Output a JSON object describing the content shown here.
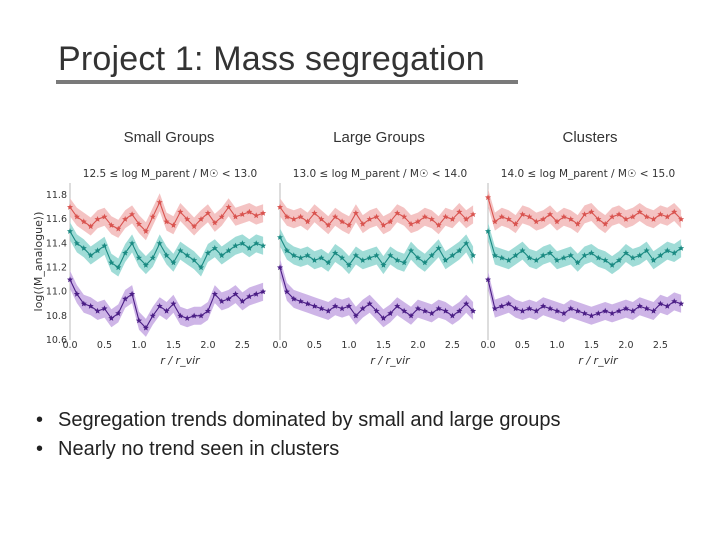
{
  "slide": {
    "title": "Project 1: Mass segregation",
    "bullets": [
      "Segregation trends dominated by small and large groups",
      "Nearly no trend seen in clusters"
    ]
  },
  "colors": {
    "top": "#d9534f",
    "middle": "#1a8a82",
    "bottom": "#4b1e86",
    "top_band": "#f2b8b8",
    "middle_band": "#8fd6d0",
    "bottom_band": "#c5a8e3"
  },
  "chart_data": [
    {
      "type": "line",
      "group": "Small Groups",
      "title": "12.5 ≤ log M_parent / M☉ < 13.0",
      "xlabel": "r / r_vir",
      "ylabel": "log(⟨M_analogue⟩)",
      "xlim": [
        0.0,
        2.9
      ],
      "ylim": [
        10.6,
        11.9
      ],
      "xticks": [
        "0.0",
        "0.5",
        "1.0",
        "1.5",
        "2.0",
        "2.5"
      ],
      "yticks": [
        "10.6",
        "10.8",
        "11.0",
        "11.2",
        "11.4",
        "11.6",
        "11.8"
      ],
      "grid": false,
      "x": [
        0.0,
        0.1,
        0.2,
        0.3,
        0.4,
        0.5,
        0.6,
        0.7,
        0.8,
        0.9,
        1.0,
        1.1,
        1.2,
        1.3,
        1.4,
        1.5,
        1.6,
        1.7,
        1.8,
        1.9,
        2.0,
        2.1,
        2.2,
        2.3,
        2.4,
        2.5,
        2.6,
        2.7,
        2.8
      ],
      "series": [
        {
          "values": [
            11.7,
            11.62,
            11.58,
            11.54,
            11.6,
            11.62,
            11.55,
            11.52,
            11.6,
            11.64,
            11.56,
            11.5,
            11.62,
            11.74,
            11.58,
            11.55,
            11.66,
            11.6,
            11.54,
            11.6,
            11.65,
            11.57,
            11.62,
            11.7,
            11.62,
            11.64,
            11.66,
            11.63,
            11.65
          ]
        },
        {
          "values": [
            11.5,
            11.4,
            11.36,
            11.3,
            11.34,
            11.38,
            11.24,
            11.2,
            11.32,
            11.4,
            11.28,
            11.22,
            11.28,
            11.4,
            11.3,
            11.24,
            11.34,
            11.3,
            11.26,
            11.2,
            11.32,
            11.36,
            11.3,
            11.34,
            11.38,
            11.4,
            11.36,
            11.4,
            11.38
          ]
        },
        {
          "values": [
            11.1,
            10.98,
            10.9,
            10.88,
            10.84,
            10.86,
            10.78,
            10.82,
            10.94,
            10.98,
            10.76,
            10.7,
            10.8,
            10.88,
            10.84,
            10.9,
            10.8,
            10.78,
            10.8,
            10.8,
            10.84,
            10.98,
            10.92,
            10.94,
            10.98,
            10.92,
            10.96,
            10.98,
            11.0
          ]
        }
      ]
    },
    {
      "type": "line",
      "group": "Large Groups",
      "title": "13.0 ≤ log M_parent / M☉ < 14.0",
      "xlabel": "r / r_vir",
      "ylabel": "",
      "xlim": [
        0.0,
        2.9
      ],
      "ylim": [
        10.6,
        11.9
      ],
      "xticks": [
        "0.0",
        "0.5",
        "1.0",
        "1.5",
        "2.0",
        "2.5"
      ],
      "yticks": [],
      "grid": false,
      "x": [
        0.0,
        0.1,
        0.2,
        0.3,
        0.4,
        0.5,
        0.6,
        0.7,
        0.8,
        0.9,
        1.0,
        1.1,
        1.2,
        1.3,
        1.4,
        1.5,
        1.6,
        1.7,
        1.8,
        1.9,
        2.0,
        2.1,
        2.2,
        2.3,
        2.4,
        2.5,
        2.6,
        2.7,
        2.8
      ],
      "series": [
        {
          "values": [
            11.7,
            11.62,
            11.6,
            11.62,
            11.58,
            11.65,
            11.6,
            11.55,
            11.62,
            11.58,
            11.55,
            11.65,
            11.56,
            11.6,
            11.62,
            11.55,
            11.58,
            11.65,
            11.62,
            11.56,
            11.58,
            11.62,
            11.6,
            11.55,
            11.62,
            11.6,
            11.66,
            11.6,
            11.64
          ]
        },
        {
          "values": [
            11.45,
            11.34,
            11.3,
            11.28,
            11.3,
            11.26,
            11.28,
            11.24,
            11.32,
            11.28,
            11.22,
            11.3,
            11.26,
            11.28,
            11.3,
            11.22,
            11.3,
            11.26,
            11.24,
            11.34,
            11.28,
            11.24,
            11.3,
            11.36,
            11.26,
            11.3,
            11.34,
            11.4,
            11.3
          ]
        },
        {
          "values": [
            11.2,
            11.0,
            10.94,
            10.92,
            10.9,
            10.88,
            10.86,
            10.84,
            10.88,
            10.86,
            10.88,
            10.8,
            10.86,
            10.9,
            10.84,
            10.78,
            10.82,
            10.88,
            10.84,
            10.8,
            10.86,
            10.84,
            10.82,
            10.86,
            10.84,
            10.8,
            10.84,
            10.9,
            10.84
          ]
        }
      ]
    },
    {
      "type": "line",
      "group": "Clusters",
      "title": "14.0 ≤ log M_parent / M☉ < 15.0",
      "xlabel": "r / r_vir",
      "ylabel": "",
      "xlim": [
        0.0,
        2.9
      ],
      "ylim": [
        10.6,
        11.9
      ],
      "xticks": [
        "0.0",
        "0.5",
        "1.0",
        "1.5",
        "2.0",
        "2.5"
      ],
      "yticks": [],
      "grid": false,
      "x": [
        0.0,
        0.1,
        0.2,
        0.3,
        0.4,
        0.5,
        0.6,
        0.7,
        0.8,
        0.9,
        1.0,
        1.1,
        1.2,
        1.3,
        1.4,
        1.5,
        1.6,
        1.7,
        1.8,
        1.9,
        2.0,
        2.1,
        2.2,
        2.3,
        2.4,
        2.5,
        2.6,
        2.7,
        2.8
      ],
      "series": [
        {
          "values": [
            11.78,
            11.58,
            11.62,
            11.6,
            11.56,
            11.64,
            11.62,
            11.58,
            11.6,
            11.64,
            11.58,
            11.62,
            11.6,
            11.56,
            11.64,
            11.66,
            11.6,
            11.56,
            11.62,
            11.64,
            11.6,
            11.62,
            11.66,
            11.62,
            11.6,
            11.64,
            11.62,
            11.66,
            11.6
          ]
        },
        {
          "values": [
            11.5,
            11.3,
            11.28,
            11.26,
            11.3,
            11.34,
            11.28,
            11.26,
            11.3,
            11.32,
            11.26,
            11.28,
            11.3,
            11.24,
            11.3,
            11.32,
            11.28,
            11.26,
            11.22,
            11.26,
            11.32,
            11.28,
            11.3,
            11.34,
            11.26,
            11.3,
            11.34,
            11.32,
            11.36
          ]
        },
        {
          "values": [
            11.1,
            10.86,
            10.88,
            10.9,
            10.86,
            10.84,
            10.86,
            10.84,
            10.88,
            10.86,
            10.84,
            10.82,
            10.86,
            10.84,
            10.82,
            10.8,
            10.82,
            10.84,
            10.82,
            10.84,
            10.86,
            10.84,
            10.88,
            10.86,
            10.84,
            10.9,
            10.88,
            10.92,
            10.9
          ]
        }
      ]
    }
  ]
}
